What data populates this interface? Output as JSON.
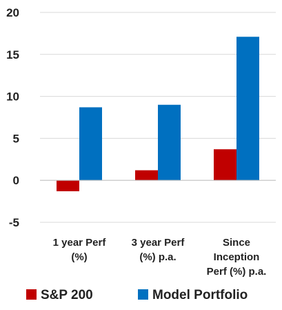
{
  "chart_data": {
    "type": "bar",
    "title": "",
    "xlabel": "",
    "ylabel": "",
    "categories": [
      [
        "1 year Perf",
        "(%)"
      ],
      [
        "3 year Perf",
        "(%) p.a."
      ],
      [
        "Since",
        "Inception",
        "Perf (%) p.a."
      ]
    ],
    "series": [
      {
        "name": "S&P 200",
        "color": "#c00000",
        "values": [
          -1.3,
          1.2,
          3.7
        ]
      },
      {
        "name": "Model Portfolio",
        "color": "#0070c0",
        "values": [
          8.7,
          9.0,
          17.1
        ]
      }
    ],
    "ylim": [
      -5,
      20
    ],
    "yticks": [
      20,
      15,
      10,
      5,
      0,
      -5
    ],
    "grid": true,
    "legend": "bottom"
  }
}
